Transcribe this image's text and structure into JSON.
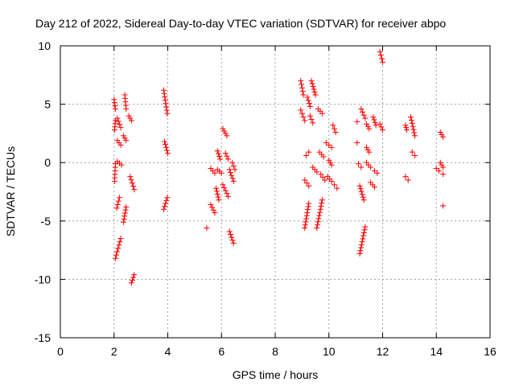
{
  "chart_data": {
    "type": "scatter",
    "title": "Day 212 of 2022, Sidereal Day-to-day VTEC variation (SDTVAR) for receiver abpo",
    "xlabel": "GPS time / hours",
    "ylabel": "SDTVAR / TECUs",
    "xlim": [
      0,
      16
    ],
    "ylim": [
      -15,
      10
    ],
    "xticks": [
      0,
      2,
      4,
      6,
      8,
      10,
      12,
      14,
      16
    ],
    "yticks": [
      -15,
      -10,
      -5,
      0,
      5,
      10
    ],
    "grid": true,
    "marker": "+",
    "color": "#ff0000",
    "series": [
      {
        "name": "SDTVAR",
        "segments": [
          [
            2.0,
            5.4,
            2.05,
            4.6
          ],
          [
            2.02,
            2.8,
            2.05,
            3.6
          ],
          [
            2.05,
            -0.1,
            2.02,
            -1.6
          ],
          [
            2.1,
            -3.9,
            2.2,
            -3.0
          ],
          [
            2.05,
            -8.2,
            2.25,
            -6.5
          ],
          [
            2.12,
            3.8,
            2.25,
            3.0
          ],
          [
            2.12,
            1.9,
            2.25,
            1.5
          ],
          [
            2.12,
            0.1,
            2.28,
            -0.2
          ],
          [
            2.35,
            2.3,
            2.45,
            1.9
          ],
          [
            2.4,
            5.8,
            2.45,
            4.6
          ],
          [
            2.35,
            -5.1,
            2.45,
            -3.8
          ],
          [
            2.55,
            4.0,
            2.65,
            3.6
          ],
          [
            2.6,
            -1.2,
            2.75,
            -2.3
          ],
          [
            2.65,
            -10.3,
            2.75,
            -9.6
          ],
          [
            3.85,
            6.2,
            3.98,
            4.2
          ],
          [
            3.88,
            1.8,
            4.0,
            0.8
          ],
          [
            3.85,
            -4.0,
            3.98,
            -3.0
          ],
          [
            5.45,
            -5.6,
            5.45,
            -5.6
          ],
          [
            5.6,
            -0.5,
            5.75,
            -0.9
          ],
          [
            5.6,
            -3.6,
            5.75,
            -4.3
          ],
          [
            5.8,
            -2.2,
            5.9,
            -3.2
          ],
          [
            5.85,
            1.0,
            5.95,
            0.3
          ],
          [
            5.85,
            -0.6,
            6.0,
            -0.9
          ],
          [
            6.05,
            2.9,
            6.2,
            2.3
          ],
          [
            6.05,
            -1.9,
            6.25,
            -2.9
          ],
          [
            6.15,
            0.8,
            6.25,
            0.3
          ],
          [
            6.3,
            -0.6,
            6.45,
            -1.6
          ],
          [
            6.3,
            -5.9,
            6.45,
            -6.9
          ],
          [
            6.4,
            0.0,
            6.5,
            -0.6
          ],
          [
            8.95,
            7.0,
            9.05,
            5.8
          ],
          [
            8.95,
            4.5,
            9.1,
            3.6
          ],
          [
            9.1,
            -1.5,
            9.25,
            -2.0
          ],
          [
            9.15,
            0.6,
            9.25,
            0.9
          ],
          [
            9.1,
            -5.6,
            9.25,
            -3.5
          ],
          [
            9.2,
            5.6,
            9.3,
            4.8
          ],
          [
            9.3,
            4.0,
            9.4,
            3.4
          ],
          [
            9.35,
            7.0,
            9.5,
            5.8
          ],
          [
            9.4,
            -0.4,
            9.55,
            -0.8
          ],
          [
            9.55,
            -5.6,
            9.75,
            -3.2
          ],
          [
            9.6,
            4.6,
            9.75,
            4.2
          ],
          [
            9.65,
            0.9,
            9.8,
            0.5
          ],
          [
            9.7,
            -1.0,
            9.85,
            -1.5
          ],
          [
            9.9,
            1.7,
            10.1,
            1.3
          ],
          [
            9.95,
            -1.2,
            10.1,
            -1.6
          ],
          [
            10.0,
            0.2,
            10.1,
            -0.2
          ],
          [
            10.15,
            3.2,
            10.25,
            2.6
          ],
          [
            10.2,
            -1.9,
            10.3,
            -2.2
          ],
          [
            11.05,
            3.5,
            11.05,
            3.5
          ],
          [
            11.05,
            1.7,
            11.05,
            1.7
          ],
          [
            11.1,
            -0.1,
            11.2,
            -0.4
          ],
          [
            11.2,
            4.6,
            11.35,
            3.8
          ],
          [
            11.15,
            -7.8,
            11.35,
            -5.5
          ],
          [
            11.15,
            -2.0,
            11.3,
            -3.2
          ],
          [
            11.4,
            3.3,
            11.5,
            2.9
          ],
          [
            11.4,
            1.3,
            11.5,
            0.9
          ],
          [
            11.4,
            0.0,
            11.55,
            -0.4
          ],
          [
            11.55,
            -1.7,
            11.7,
            -2.1
          ],
          [
            11.65,
            3.9,
            11.75,
            3.2
          ],
          [
            11.7,
            -0.7,
            11.8,
            -0.9
          ],
          [
            11.9,
            9.5,
            12.0,
            8.6
          ],
          [
            11.9,
            3.3,
            12.0,
            2.8
          ],
          [
            12.85,
            3.2,
            12.9,
            2.8
          ],
          [
            12.85,
            -1.2,
            12.95,
            -1.5
          ],
          [
            13.05,
            3.9,
            13.2,
            2.3
          ],
          [
            13.1,
            0.9,
            13.2,
            0.6
          ],
          [
            14.0,
            -0.5,
            14.1,
            -0.7
          ],
          [
            14.15,
            2.6,
            14.25,
            2.2
          ],
          [
            14.15,
            0.0,
            14.25,
            -0.4
          ],
          [
            14.25,
            -1.0,
            14.25,
            -1.0
          ],
          [
            14.25,
            -3.7,
            14.25,
            -3.7
          ]
        ]
      }
    ]
  }
}
